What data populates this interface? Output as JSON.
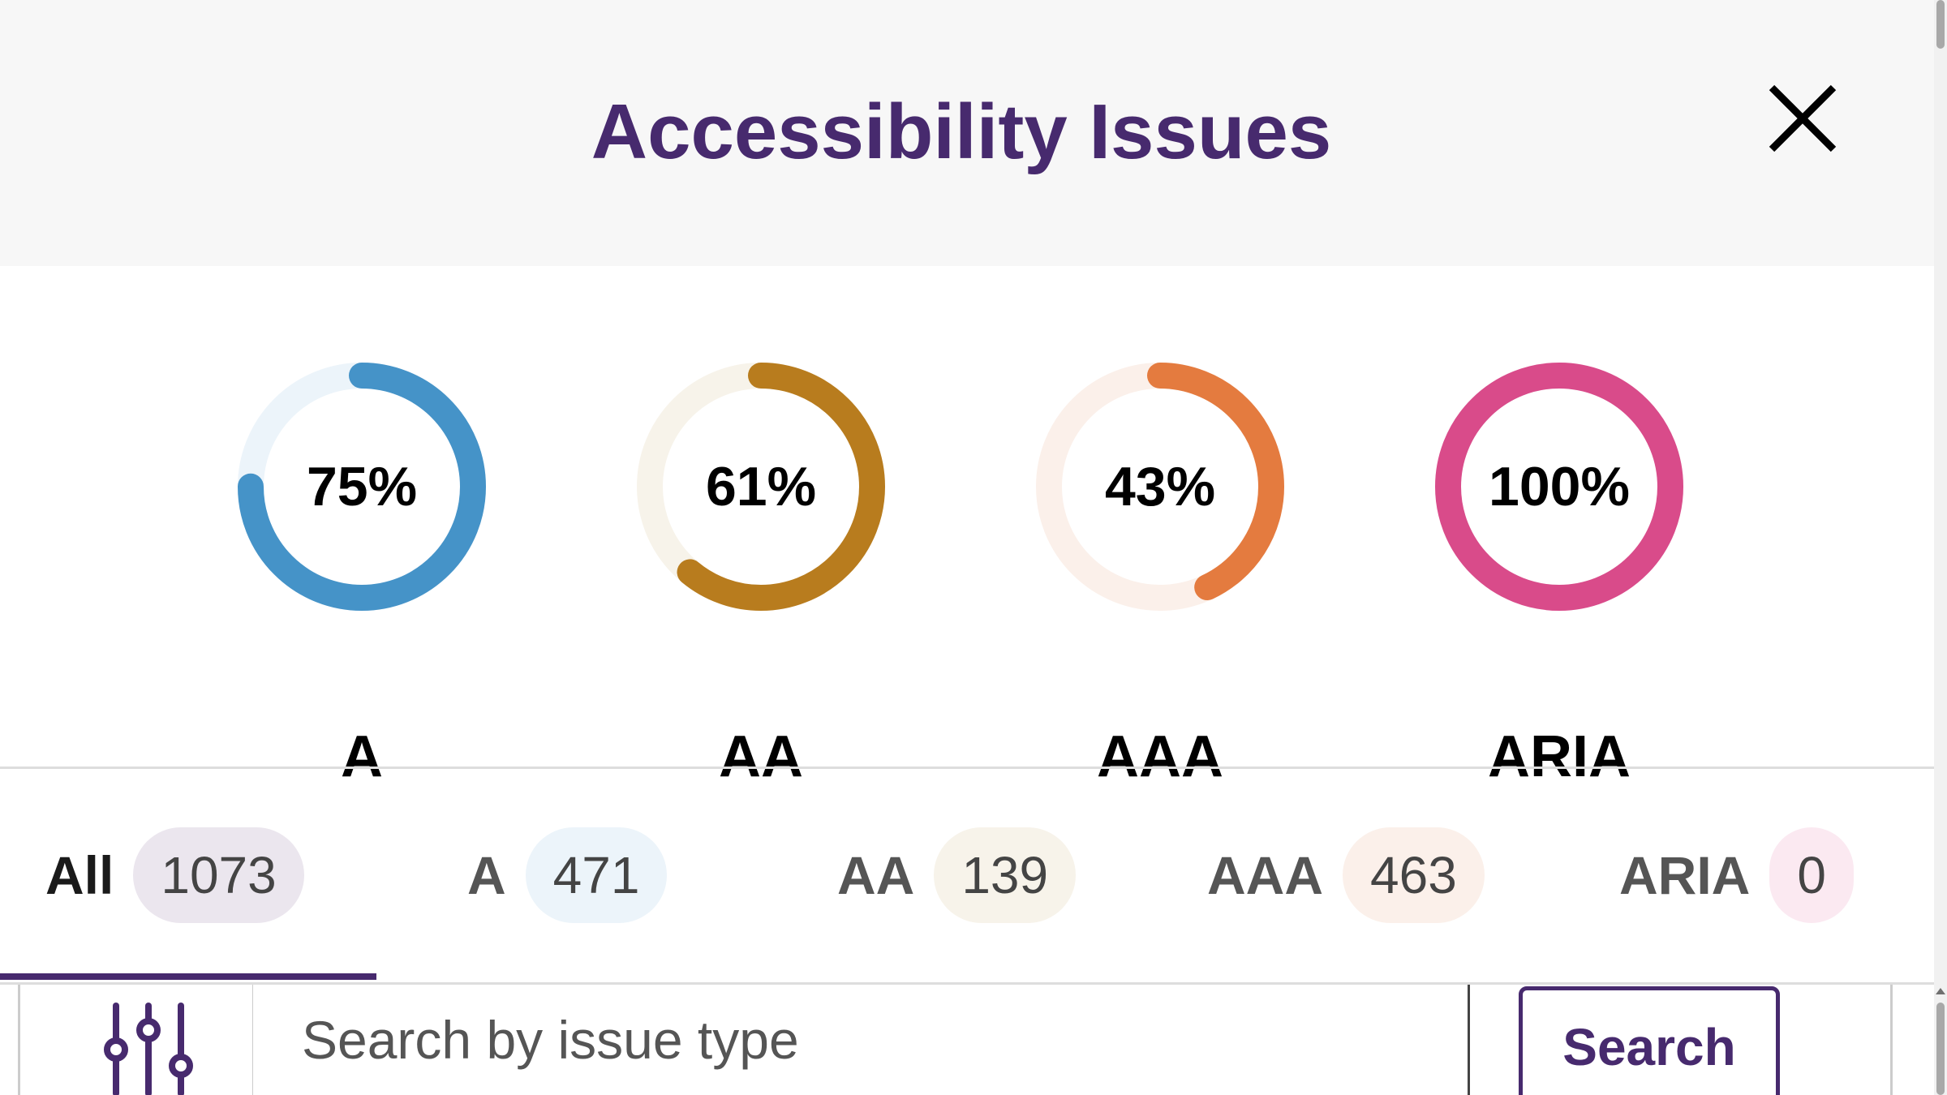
{
  "header": {
    "title": "Accessibility Issues",
    "close_icon": "close-icon"
  },
  "charts": [
    {
      "label": "A",
      "percent_text": "75%",
      "percent": 75,
      "color": "#4593c8",
      "track_color": "#ecf4fa"
    },
    {
      "label": "AA",
      "percent_text": "61%",
      "percent": 61,
      "color": "#b87c1e",
      "track_color": "#f7f3ea"
    },
    {
      "label": "AAA",
      "percent_text": "43%",
      "percent": 43,
      "color": "#e47b3f",
      "track_color": "#fbf0ea"
    },
    {
      "label": "ARIA",
      "percent_text": "100%",
      "percent": 100,
      "color": "#d94b8a",
      "track_color": "#fbe9f1"
    }
  ],
  "tabs": [
    {
      "label": "All",
      "count": "1073",
      "active": true,
      "badge_color": "#ebe6ee"
    },
    {
      "label": "A",
      "count": "471",
      "active": false,
      "badge_color": "#ecf4fa"
    },
    {
      "label": "AA",
      "count": "139",
      "active": false,
      "badge_color": "#f7f3ea"
    },
    {
      "label": "AAA",
      "count": "463",
      "active": false,
      "badge_color": "#fbf0ea"
    },
    {
      "label": "ARIA",
      "count": "0",
      "active": false,
      "badge_color": "#fbe9f1"
    }
  ],
  "search": {
    "filter_icon": "sliders-icon",
    "placeholder": "Search by issue type",
    "button_label": "Search"
  },
  "colors": {
    "accent": "#472a6e"
  }
}
